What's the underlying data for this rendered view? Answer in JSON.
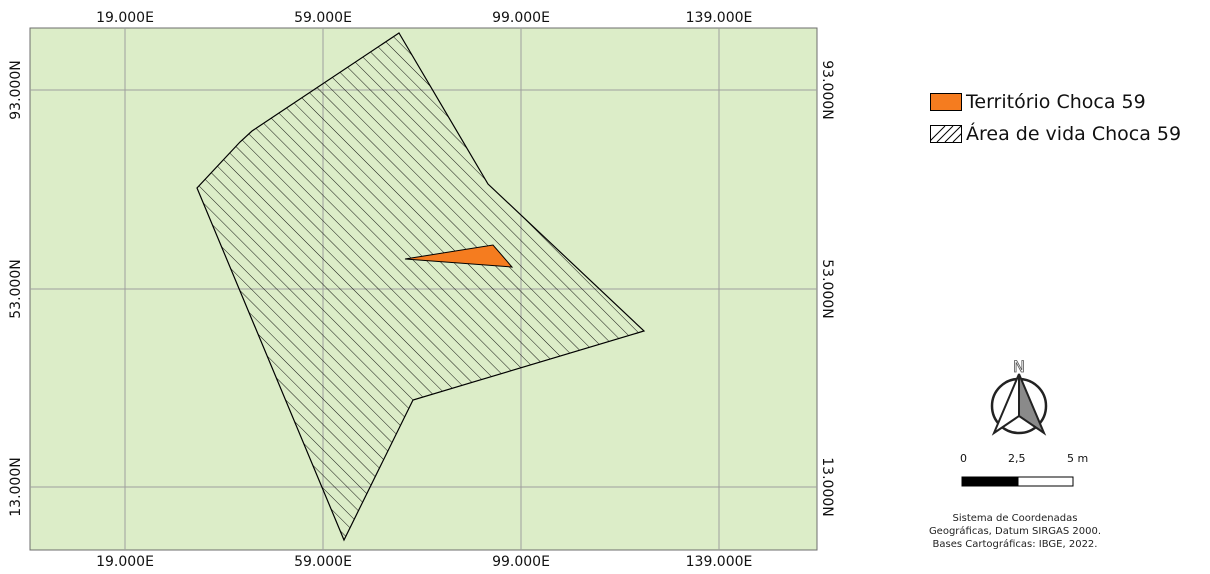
{
  "map": {
    "x_ticks": [
      "19.000E",
      "59.000E",
      "99.000E",
      "139.000E"
    ],
    "y_ticks": [
      "93.000N",
      "53.000N",
      "13.000N"
    ],
    "background_color": "#dcedc8",
    "grid_color": "#9e9e9e"
  },
  "layers": {
    "home_range": {
      "label": "Área de vida Choca 59",
      "fill": "hatched",
      "stroke": "#000000"
    },
    "territory": {
      "label": "Território Choca 59",
      "color": "#f57c1f",
      "stroke": "#000000"
    }
  },
  "north_arrow": {
    "label": "N",
    "icon": "north-arrow-icon"
  },
  "scale_bar": {
    "labels": [
      "0",
      "2,5",
      "5 m"
    ]
  },
  "credits": {
    "lines": [
      "Sistema de Coordenadas",
      "Geográficas, Datum SIRGAS 2000.",
      "Bases Cartográficas: IBGE, 2022."
    ]
  }
}
